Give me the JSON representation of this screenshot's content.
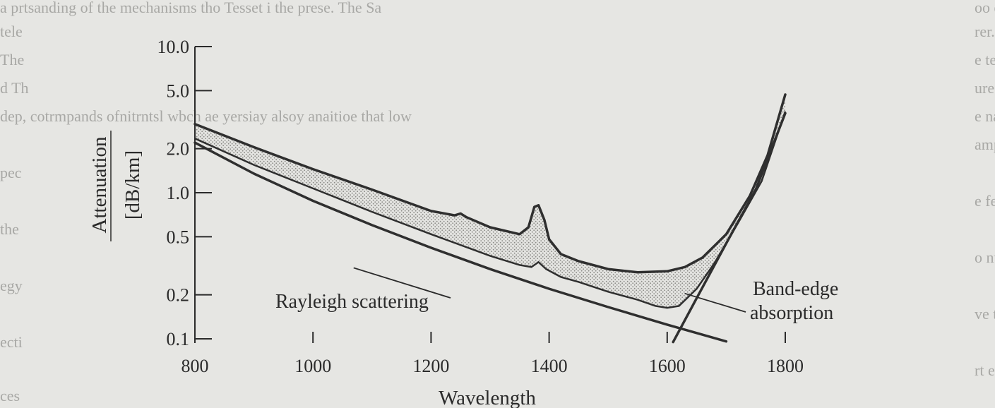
{
  "chart_data": {
    "type": "area",
    "xlabel": "Wavelength",
    "ylabel": "Attenuation",
    "ylabel_units": "[dB/km]",
    "x_range": [
      800,
      1800
    ],
    "y_range": [
      0.1,
      10.0
    ],
    "y_scale": "log",
    "x_ticks": [
      800,
      1000,
      1200,
      1400,
      1600,
      1800
    ],
    "x_tick_labels": [
      "800",
      "1000",
      "1200",
      "1400",
      "1600",
      "1800"
    ],
    "y_ticks": [
      10.0,
      5.0,
      2.0,
      1.0,
      0.5,
      0.2,
      0.1
    ],
    "y_tick_labels": [
      "10.0",
      "5.0",
      "2.0",
      "1.0",
      "0.5",
      "0.2",
      "0.1"
    ],
    "grid": false,
    "band": {
      "fill": "#d6d6d2",
      "upper": [
        {
          "x": 800,
          "y": 2.95
        },
        {
          "x": 900,
          "y": 2.05
        },
        {
          "x": 1000,
          "y": 1.45
        },
        {
          "x": 1100,
          "y": 1.05
        },
        {
          "x": 1200,
          "y": 0.75
        },
        {
          "x": 1240,
          "y": 0.7
        },
        {
          "x": 1250,
          "y": 0.72
        },
        {
          "x": 1260,
          "y": 0.68
        },
        {
          "x": 1300,
          "y": 0.58
        },
        {
          "x": 1350,
          "y": 0.52
        },
        {
          "x": 1365,
          "y": 0.58
        },
        {
          "x": 1375,
          "y": 0.8
        },
        {
          "x": 1382,
          "y": 0.82
        },
        {
          "x": 1392,
          "y": 0.65
        },
        {
          "x": 1400,
          "y": 0.48
        },
        {
          "x": 1420,
          "y": 0.38
        },
        {
          "x": 1450,
          "y": 0.34
        },
        {
          "x": 1500,
          "y": 0.3
        },
        {
          "x": 1550,
          "y": 0.285
        },
        {
          "x": 1600,
          "y": 0.29
        },
        {
          "x": 1630,
          "y": 0.31
        },
        {
          "x": 1660,
          "y": 0.36
        },
        {
          "x": 1700,
          "y": 0.52
        },
        {
          "x": 1740,
          "y": 0.95
        },
        {
          "x": 1770,
          "y": 1.8
        },
        {
          "x": 1800,
          "y": 4.7
        }
      ],
      "lower": [
        {
          "x": 800,
          "y": 2.35
        },
        {
          "x": 900,
          "y": 1.55
        },
        {
          "x": 1000,
          "y": 1.07
        },
        {
          "x": 1100,
          "y": 0.74
        },
        {
          "x": 1200,
          "y": 0.52
        },
        {
          "x": 1300,
          "y": 0.37
        },
        {
          "x": 1350,
          "y": 0.32
        },
        {
          "x": 1370,
          "y": 0.31
        },
        {
          "x": 1382,
          "y": 0.335
        },
        {
          "x": 1395,
          "y": 0.3
        },
        {
          "x": 1420,
          "y": 0.265
        },
        {
          "x": 1450,
          "y": 0.245
        },
        {
          "x": 1500,
          "y": 0.21
        },
        {
          "x": 1550,
          "y": 0.185
        },
        {
          "x": 1580,
          "y": 0.168
        },
        {
          "x": 1600,
          "y": 0.163
        },
        {
          "x": 1620,
          "y": 0.168
        },
        {
          "x": 1650,
          "y": 0.22
        },
        {
          "x": 1680,
          "y": 0.33
        },
        {
          "x": 1720,
          "y": 0.62
        },
        {
          "x": 1760,
          "y": 1.2
        },
        {
          "x": 1800,
          "y": 3.6
        }
      ]
    },
    "series": [
      {
        "name": "Rayleigh scattering",
        "points": [
          {
            "x": 800,
            "y": 2.2
          },
          {
            "x": 900,
            "y": 1.35
          },
          {
            "x": 1000,
            "y": 0.88
          },
          {
            "x": 1100,
            "y": 0.6
          },
          {
            "x": 1200,
            "y": 0.42
          },
          {
            "x": 1300,
            "y": 0.3
          },
          {
            "x": 1400,
            "y": 0.22
          },
          {
            "x": 1500,
            "y": 0.165
          },
          {
            "x": 1600,
            "y": 0.125
          },
          {
            "x": 1700,
            "y": 0.096
          }
        ]
      },
      {
        "name": "Band-edge absorption",
        "points": [
          {
            "x": 1610,
            "y": 0.095
          },
          {
            "x": 1650,
            "y": 0.19
          },
          {
            "x": 1700,
            "y": 0.45
          },
          {
            "x": 1750,
            "y": 1.05
          },
          {
            "x": 1800,
            "y": 3.5
          }
        ]
      }
    ],
    "annotations": [
      {
        "text": "Rayleigh scattering",
        "target": {
          "x": 1210,
          "y": 0.28
        }
      },
      {
        "text": "Band-edge",
        "text2": "absorption",
        "target": {
          "x": 1620,
          "y": 0.175
        }
      }
    ]
  },
  "background_text": [
    "a prtsanding of the mechanisms tho Tesset i the prese. The Sa",
    "rer. The ccaund of ultraviolet ahsorption. Sfbre of sets there of",
    "The",
    "ure of the PU& sm: Hmstd cet enceaee ofcinde ent dB/km within",
    "dep, cotrmpands ofnitrntsl wbch ae yersiay alsoy anaitioe that low",
    "amp cres aecrate mt of which cle sere reed tie haerne te ee ght eles",
    "pec",
    "e fe reent so tat the wecks tudpate ae acmslkthenstnd",
    "the",
    "o ntomne the ut a de tiebe wete the ernest TC",
    "egy",
    "ve t te ee e sseri tofer t ote h e ca el t nen wnth en e ue The",
    "ecti",
    "rt e ae e er tt. me fe rr ere  oe or ee ae a ia reoneu a lrct",
    "ces",
    "oo e nuseann oe o i ane e ooeel oebe ooe e unet ae ete er",
    "tele",
    "e  te e ser e e e eaeo s ee  n ae es  n nere nat ee n cne",
    "d Th",
    "e nae e ee ea ri e e e  a cer   e ee n e  nnmtn  e e e e  n"
  ]
}
